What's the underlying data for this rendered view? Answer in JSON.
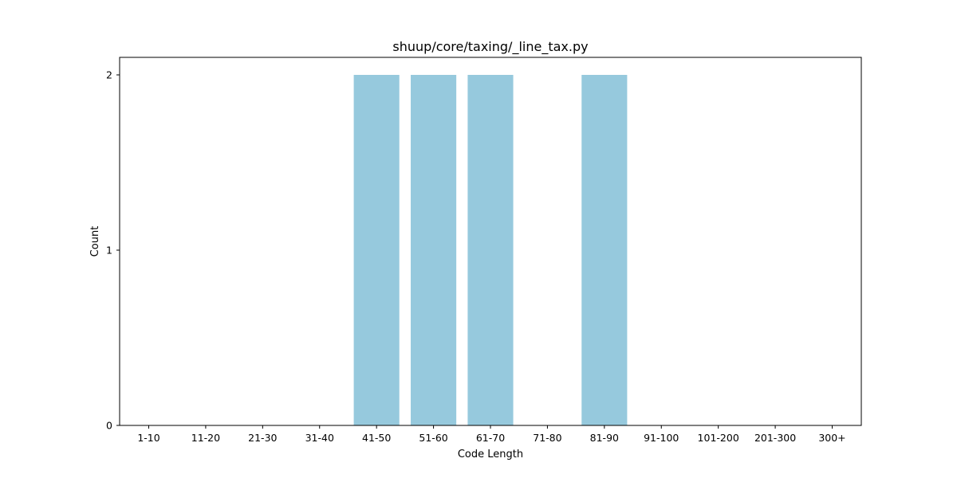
{
  "chart_data": {
    "type": "bar",
    "title": "shuup/core/taxing/_line_tax.py",
    "xlabel": "Code Length",
    "ylabel": "Count",
    "categories": [
      "1-10",
      "11-20",
      "21-30",
      "31-40",
      "41-50",
      "51-60",
      "61-70",
      "71-80",
      "81-90",
      "91-100",
      "101-200",
      "201-300",
      "300+"
    ],
    "values": [
      0,
      0,
      0,
      0,
      2,
      2,
      2,
      0,
      2,
      0,
      0,
      0,
      0
    ],
    "yticks": [
      0,
      1,
      2
    ],
    "ylim": [
      0,
      2.1
    ],
    "grid": false,
    "legend": "none",
    "bar_color": "#96c9dd"
  }
}
